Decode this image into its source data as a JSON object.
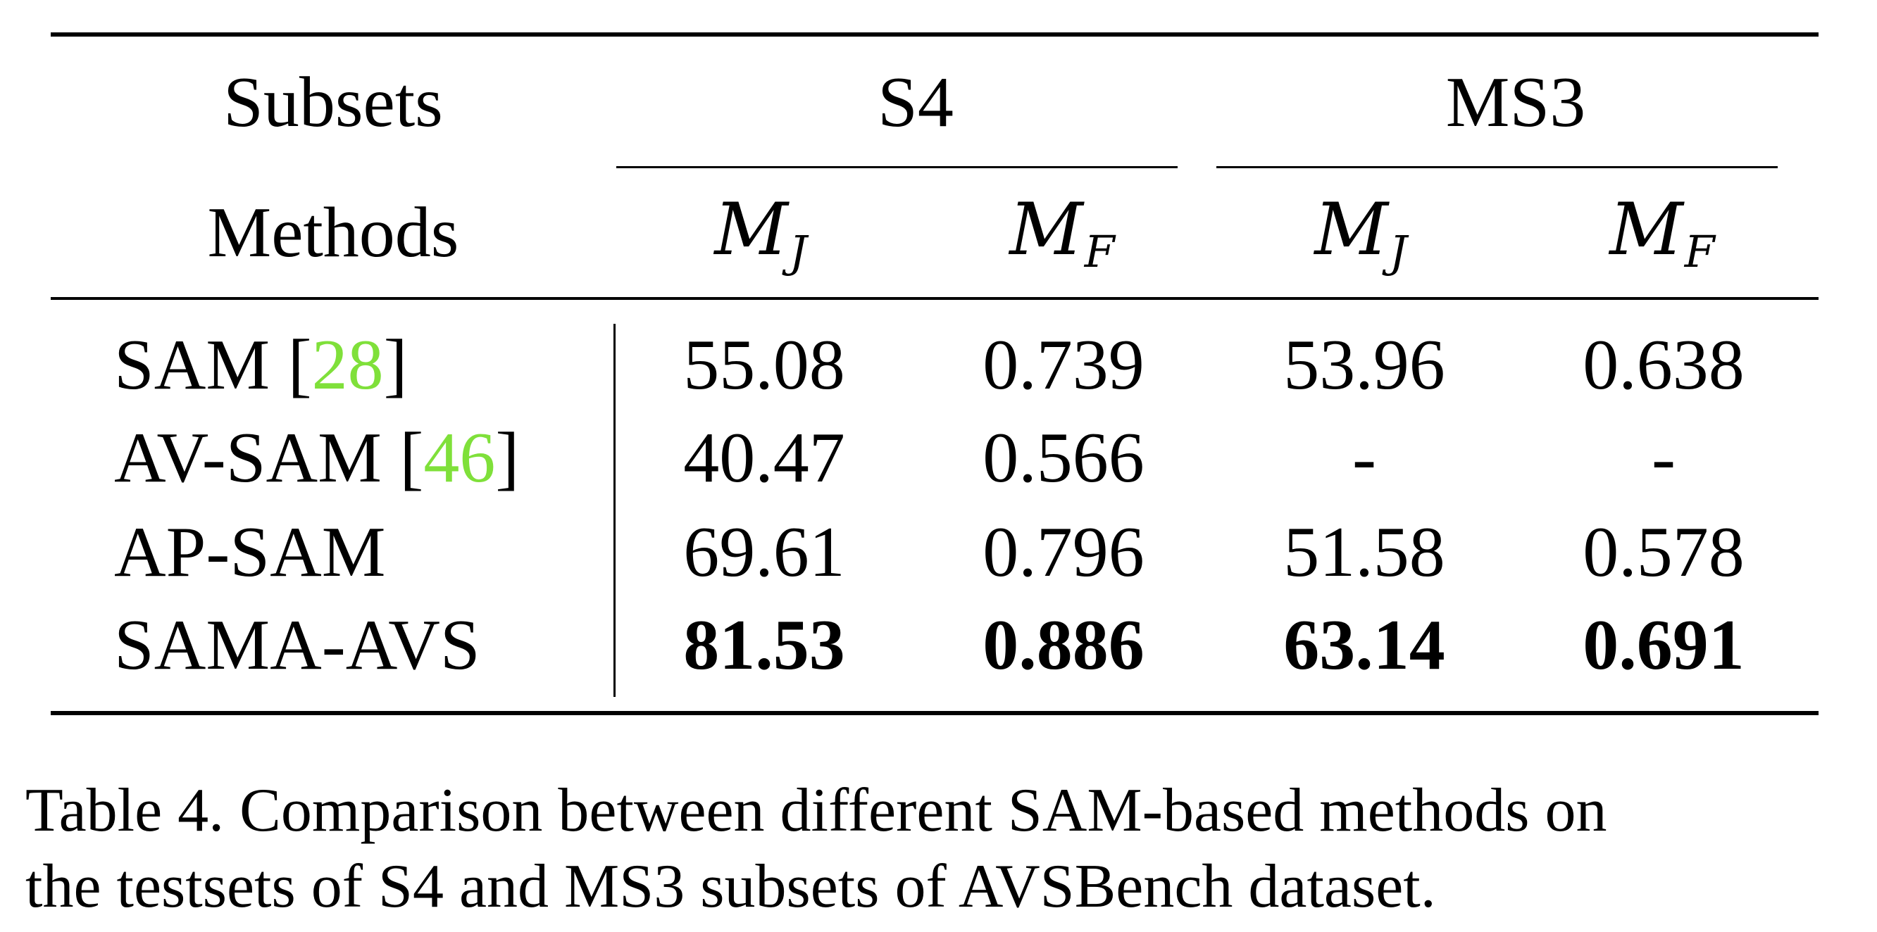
{
  "table": {
    "header_row1": {
      "subsets_label": "Subsets",
      "group1": "S4",
      "group2": "MS3"
    },
    "header_row2": {
      "methods_label": "Methods",
      "metric_main": "M",
      "metric_j_sub": "J",
      "metric_f_sub": "F"
    },
    "rows": [
      {
        "method": "SAM ",
        "ref_open": "[",
        "ref": "28",
        "ref_close": "]",
        "values": [
          "55.08",
          "0.739",
          "53.96",
          "0.638"
        ],
        "bold": false
      },
      {
        "method": "AV-SAM ",
        "ref_open": "[",
        "ref": "46",
        "ref_close": "]",
        "values": [
          "40.47",
          "0.566",
          "-",
          "-"
        ],
        "bold": false
      },
      {
        "method": "AP-SAM",
        "ref_open": "",
        "ref": "",
        "ref_close": "",
        "values": [
          "69.61",
          "0.796",
          "51.58",
          "0.578"
        ],
        "bold": false
      },
      {
        "method": "SAMA-AVS",
        "ref_open": "",
        "ref": "",
        "ref_close": "",
        "values": [
          "81.53",
          "0.886",
          "63.14",
          "0.691"
        ],
        "bold": true
      }
    ],
    "colors": {
      "ref_link": "#7fe03a",
      "text": "#000000"
    }
  },
  "caption": {
    "line1": "Table 4.  Comparison between different SAM-based methods on",
    "line2": "the testsets of S4 and MS3 subsets of AVSBench dataset."
  }
}
